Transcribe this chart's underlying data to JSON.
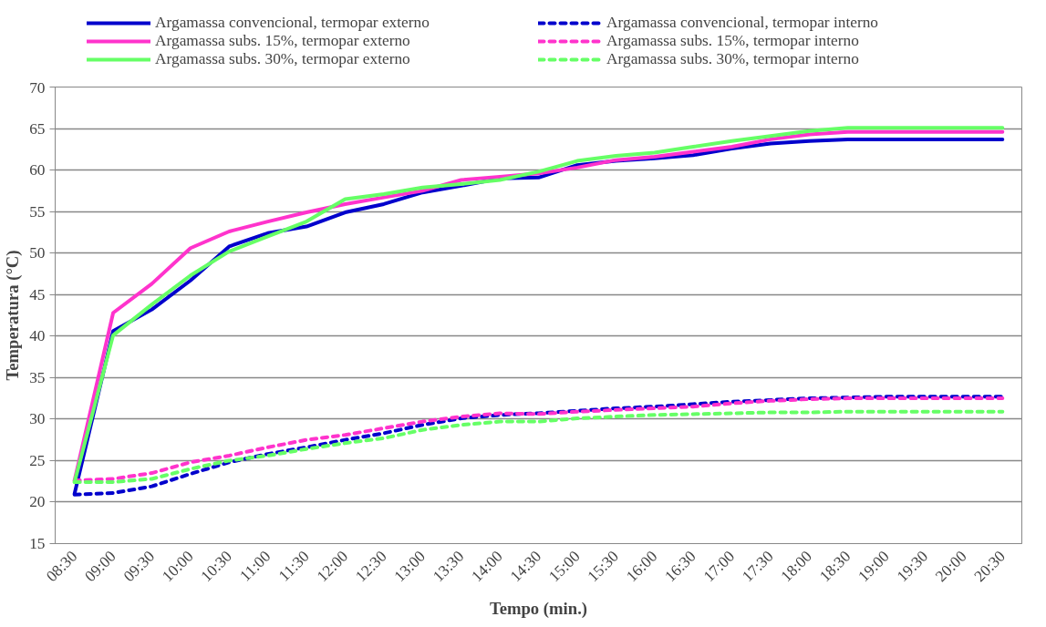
{
  "chart_data": {
    "type": "line",
    "xlabel": "Tempo (min.)",
    "ylabel": "Temperatura (°C)",
    "categories": [
      "08:30",
      "09:00",
      "09:30",
      "10:00",
      "10:30",
      "11:00",
      "11:30",
      "12:00",
      "12:30",
      "13:00",
      "13:30",
      "14:00",
      "14:30",
      "15:00",
      "15:30",
      "16:00",
      "16:30",
      "17:00",
      "17:30",
      "18:00",
      "18:30",
      "19:00",
      "19:30",
      "20:00",
      "20:30"
    ],
    "ylim": [
      15,
      70
    ],
    "yticks": [
      15,
      20,
      25,
      30,
      35,
      40,
      45,
      50,
      55,
      60,
      65,
      70
    ],
    "grid": "y",
    "legend": "top",
    "series": [
      {
        "name": "Argamassa convencional, termopar externo",
        "color": "#0000cc",
        "line_style": "solid",
        "values": [
          21.0,
          40.6,
          43.2,
          46.7,
          50.8,
          52.4,
          53.2,
          54.9,
          55.9,
          57.3,
          58.1,
          59.0,
          59.1,
          60.6,
          61.1,
          61.4,
          61.8,
          62.6,
          63.2,
          63.5,
          63.7,
          63.7,
          63.7,
          63.7,
          63.7
        ]
      },
      {
        "name": "Argamassa convencional, termopar interno",
        "color": "#0000cc",
        "line_style": "dashed",
        "values": [
          20.9,
          21.1,
          21.9,
          23.4,
          24.8,
          25.8,
          26.6,
          27.5,
          28.3,
          29.3,
          30.1,
          30.5,
          30.7,
          31.0,
          31.3,
          31.5,
          31.8,
          32.1,
          32.3,
          32.5,
          32.6,
          32.7,
          32.7,
          32.7,
          32.7
        ]
      },
      {
        "name": "Argamassa subs. 15%, termopar externo",
        "color": "#ff33cc",
        "line_style": "solid",
        "values": [
          22.6,
          42.8,
          46.3,
          50.6,
          52.6,
          53.8,
          54.9,
          55.9,
          56.7,
          57.5,
          58.8,
          59.2,
          59.6,
          60.3,
          61.2,
          61.6,
          62.2,
          62.8,
          63.7,
          64.3,
          64.6,
          64.6,
          64.6,
          64.6,
          64.6
        ]
      },
      {
        "name": "Argamassa subs. 15%, termopar interno",
        "color": "#ff33cc",
        "line_style": "dashed",
        "values": [
          22.6,
          22.8,
          23.5,
          24.8,
          25.6,
          26.6,
          27.5,
          28.1,
          28.9,
          29.7,
          30.3,
          30.7,
          30.6,
          30.9,
          31.1,
          31.3,
          31.5,
          31.9,
          32.2,
          32.4,
          32.5,
          32.5,
          32.5,
          32.5,
          32.5
        ]
      },
      {
        "name": "Argamassa subs. 30%, termopar externo",
        "color": "#66ff66",
        "line_style": "solid",
        "values": [
          22.4,
          40.1,
          43.8,
          47.3,
          50.2,
          52.0,
          53.8,
          56.5,
          57.1,
          57.9,
          58.3,
          58.8,
          59.8,
          61.1,
          61.7,
          62.1,
          62.8,
          63.5,
          64.1,
          64.7,
          65.1,
          65.1,
          65.1,
          65.1,
          65.1
        ]
      },
      {
        "name": "Argamassa subs. 30%, termopar interno",
        "color": "#66ff66",
        "line_style": "dashed",
        "values": [
          22.4,
          22.4,
          22.8,
          24.0,
          25.0,
          25.6,
          26.4,
          27.1,
          27.7,
          28.7,
          29.3,
          29.7,
          29.7,
          30.1,
          30.3,
          30.5,
          30.6,
          30.7,
          30.8,
          30.8,
          30.9,
          30.9,
          30.9,
          30.9,
          30.9
        ]
      }
    ]
  }
}
